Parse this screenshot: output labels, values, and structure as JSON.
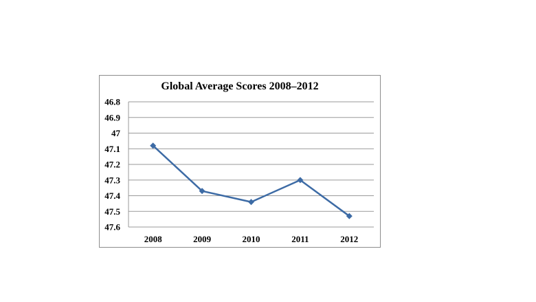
{
  "chart_data": {
    "type": "line",
    "title": "Global Average Scores 2008–2012",
    "categories": [
      "2008",
      "2009",
      "2010",
      "2011",
      "2012"
    ],
    "series": [
      {
        "values": [
          47.08,
          47.37,
          47.44,
          47.3,
          47.53
        ]
      }
    ],
    "ylim": [
      46.8,
      47.6
    ],
    "y_reversed": true,
    "y_ticks": [
      "46.8",
      "46.9",
      "47",
      "47.1",
      "47.2",
      "47.3",
      "47.4",
      "47.5",
      "47.6"
    ],
    "y_tick_values": [
      46.8,
      46.9,
      47.0,
      47.1,
      47.2,
      47.3,
      47.4,
      47.5,
      47.6
    ],
    "grid": true,
    "marker": "diamond",
    "colors": {
      "line": "#3d6ba5",
      "grid": "#9a9a9a",
      "frame": "#8c8c8c"
    }
  }
}
